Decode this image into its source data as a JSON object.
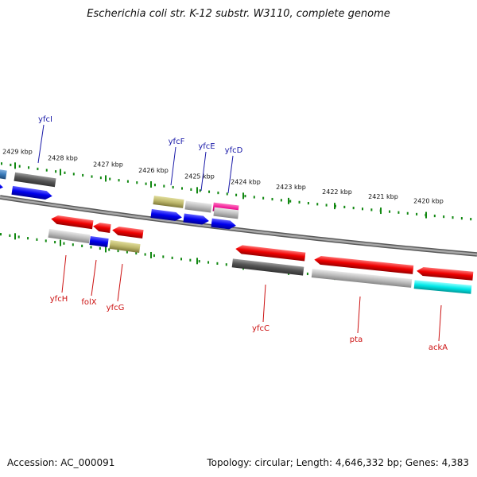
{
  "title": "Escherichia coli str. K-12 substr. W3110, complete genome",
  "accession": "Accession: AC_000091",
  "topology": "Topology: circular; Length: 4,646,332 bp; Genes: 4,383",
  "colors": {
    "upper_label": "#1a1aa8",
    "lower_label": "#cc1111",
    "tick": "#118811",
    "backbone": "#8c8c8c"
  },
  "ticks": [
    {
      "label": "2429 kbp"
    },
    {
      "label": "2428 kbp"
    },
    {
      "label": "2427 kbp"
    },
    {
      "label": "2426 kbp"
    },
    {
      "label": "2425 kbp"
    },
    {
      "label": "2424 kbp"
    },
    {
      "label": "2423 kbp"
    },
    {
      "label": "2422 kbp"
    },
    {
      "label": "2421 kbp"
    },
    {
      "label": "2420 kbp"
    }
  ],
  "genes_upper": [
    {
      "name": "yfcI"
    },
    {
      "name": "yfcF"
    },
    {
      "name": "yfcE"
    },
    {
      "name": "yfcD"
    }
  ],
  "genes_lower": [
    {
      "name": "yfcH"
    },
    {
      "name": "folX"
    },
    {
      "name": "yfcG"
    },
    {
      "name": "yfcC"
    },
    {
      "name": "pta"
    },
    {
      "name": "ackA"
    }
  ]
}
